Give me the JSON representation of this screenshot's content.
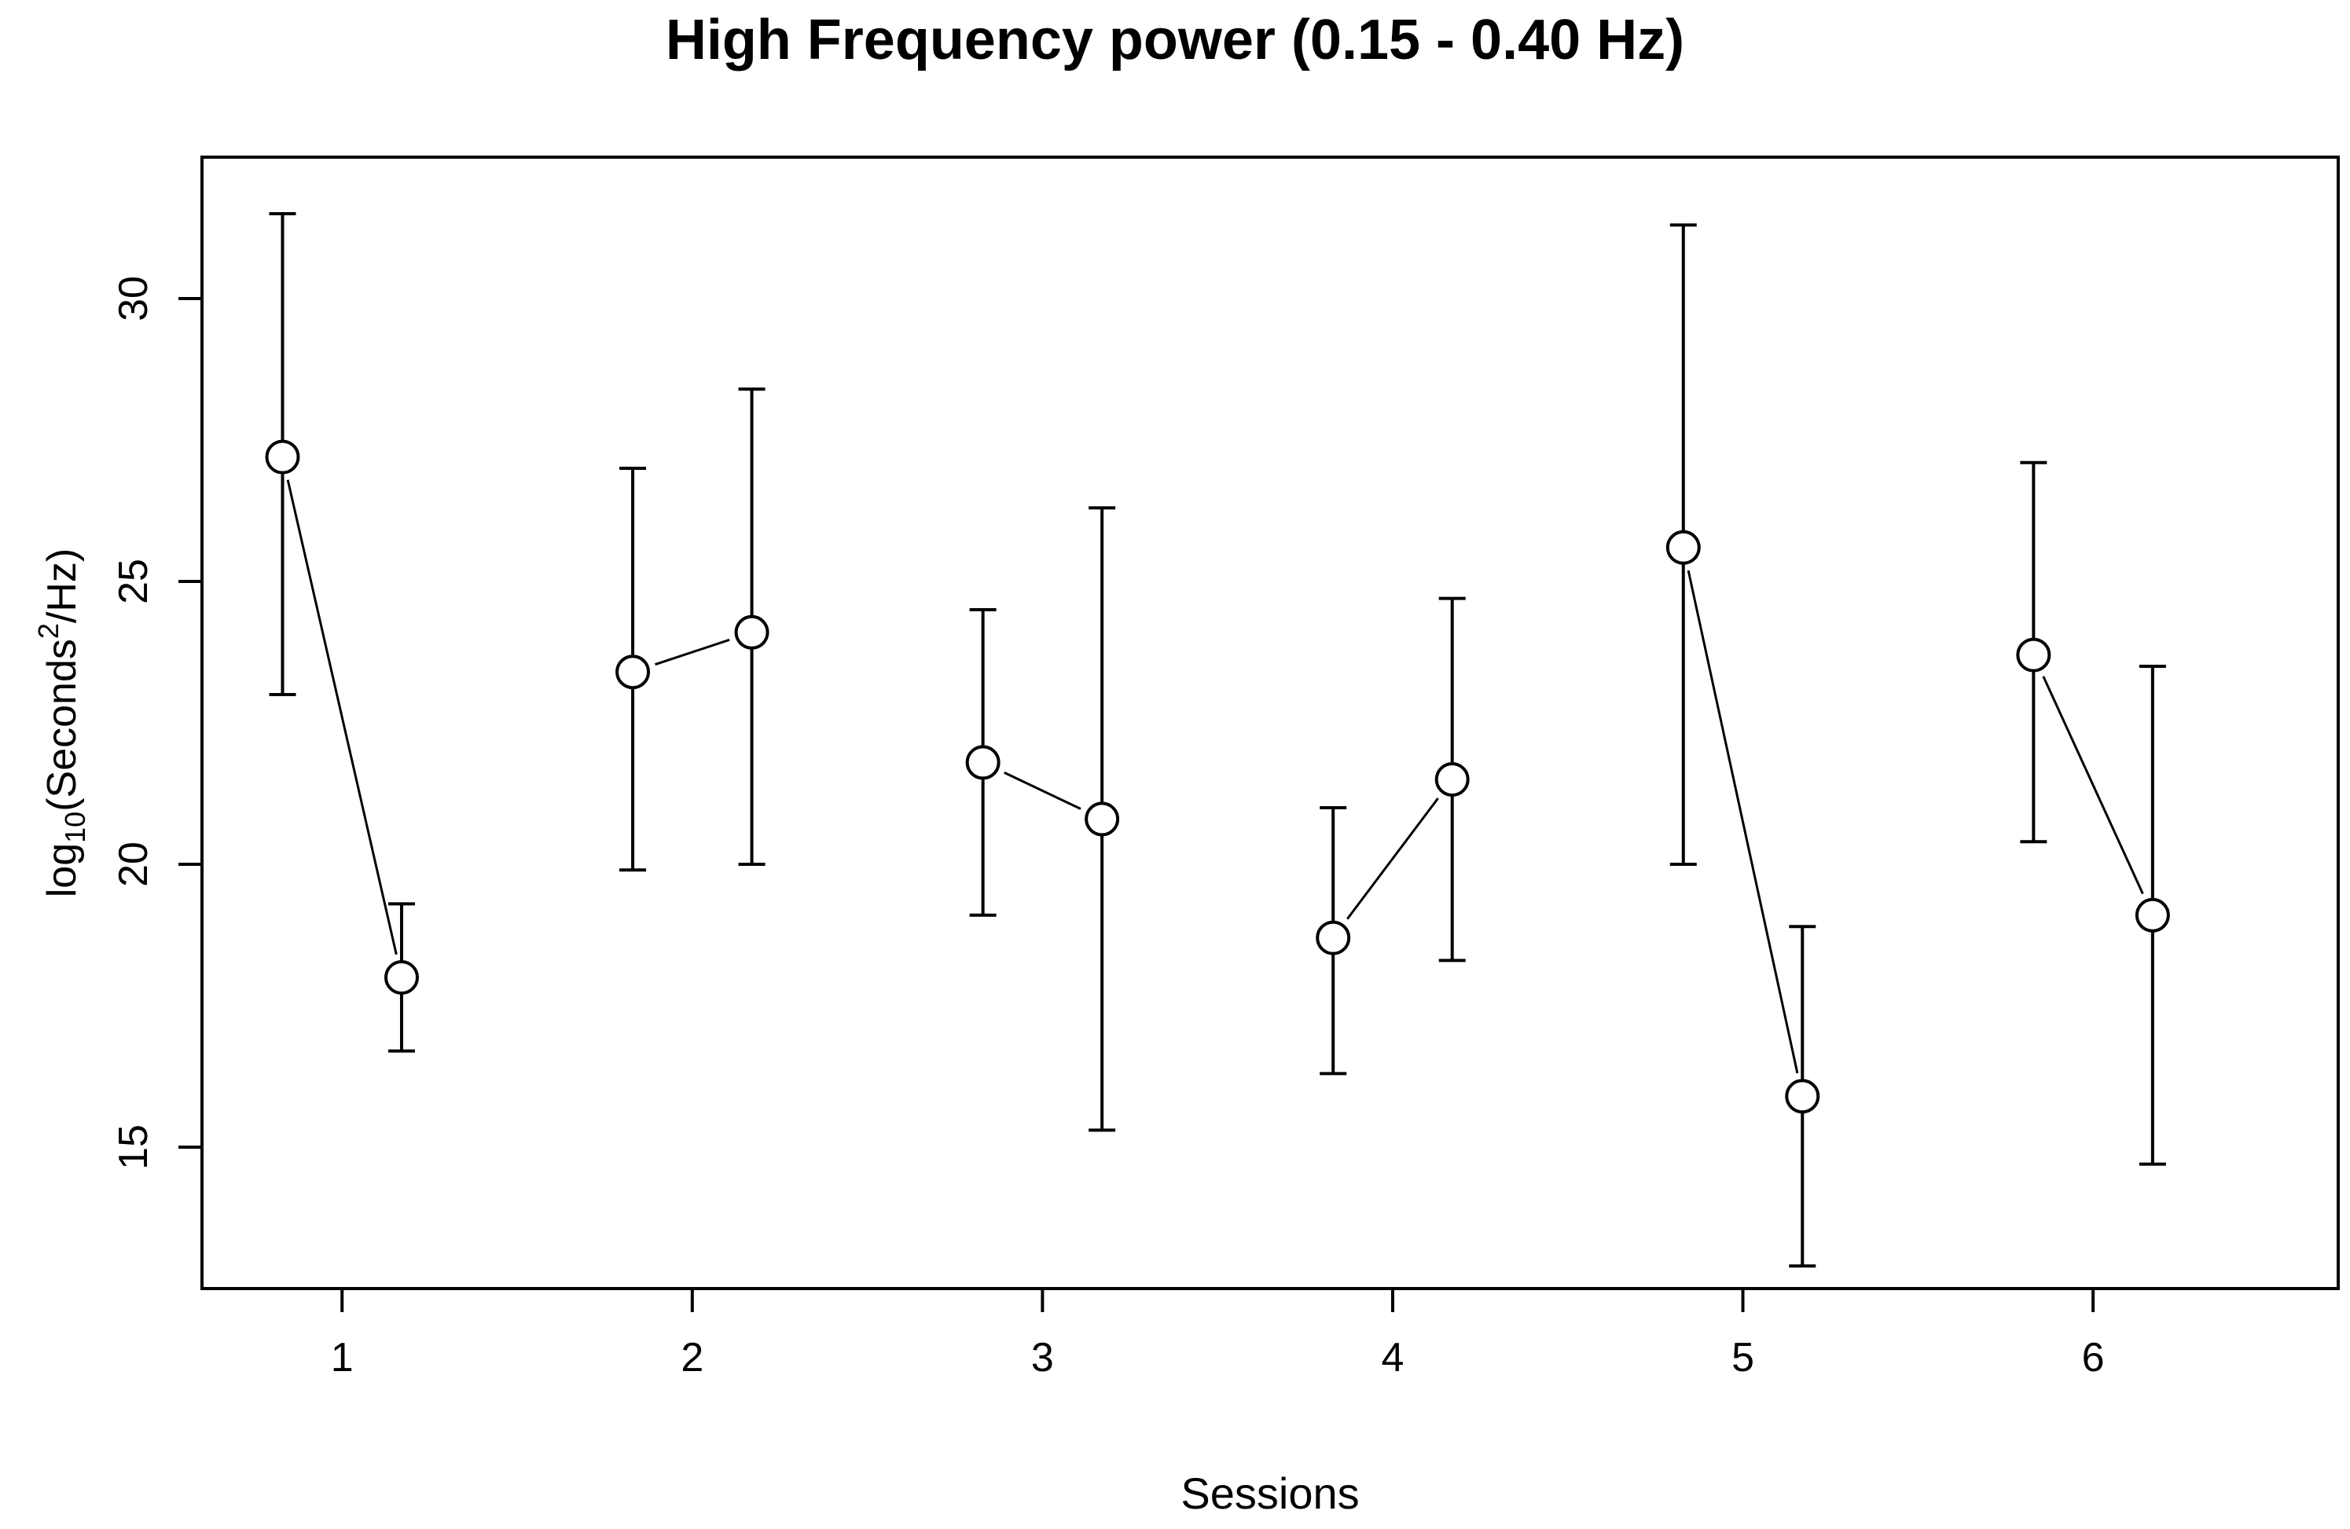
{
  "chart_data": {
    "type": "scatter",
    "title": "High Frequency power (0.15 - 0.40 Hz)",
    "xlabel": "Sessions",
    "ylabel": {
      "prefix": "log",
      "sub": "10",
      "mid": "(Seconds",
      "sup": "2",
      "suffix": "/Hz)"
    },
    "x_ticks": [
      1,
      2,
      3,
      4,
      5,
      6
    ],
    "y_ticks": [
      15,
      20,
      25,
      30
    ],
    "xlim": [
      0.6,
      6.7
    ],
    "ylim": [
      12.5,
      32.5
    ],
    "grid": false,
    "points": [
      {
        "session": 1,
        "x": 0.83,
        "y": 27.2,
        "lower": 23.0,
        "upper": 31.5
      },
      {
        "session": 1,
        "x": 1.17,
        "y": 18.0,
        "lower": 16.7,
        "upper": 19.3
      },
      {
        "session": 2,
        "x": 1.83,
        "y": 23.4,
        "lower": 19.9,
        "upper": 27.0
      },
      {
        "session": 2,
        "x": 2.17,
        "y": 24.1,
        "lower": 20.0,
        "upper": 28.4
      },
      {
        "session": 3,
        "x": 2.83,
        "y": 21.8,
        "lower": 19.1,
        "upper": 24.5
      },
      {
        "session": 3,
        "x": 3.17,
        "y": 20.8,
        "lower": 15.3,
        "upper": 26.3
      },
      {
        "session": 4,
        "x": 3.83,
        "y": 18.7,
        "lower": 16.3,
        "upper": 21.0
      },
      {
        "session": 4,
        "x": 4.17,
        "y": 21.5,
        "lower": 18.3,
        "upper": 24.7
      },
      {
        "session": 5,
        "x": 4.83,
        "y": 25.6,
        "lower": 20.0,
        "upper": 31.3
      },
      {
        "session": 5,
        "x": 5.17,
        "y": 15.9,
        "lower": 12.9,
        "upper": 18.9
      },
      {
        "session": 6,
        "x": 5.83,
        "y": 23.7,
        "lower": 20.4,
        "upper": 27.1
      },
      {
        "session": 6,
        "x": 6.17,
        "y": 19.1,
        "lower": 14.7,
        "upper": 23.5
      }
    ]
  }
}
